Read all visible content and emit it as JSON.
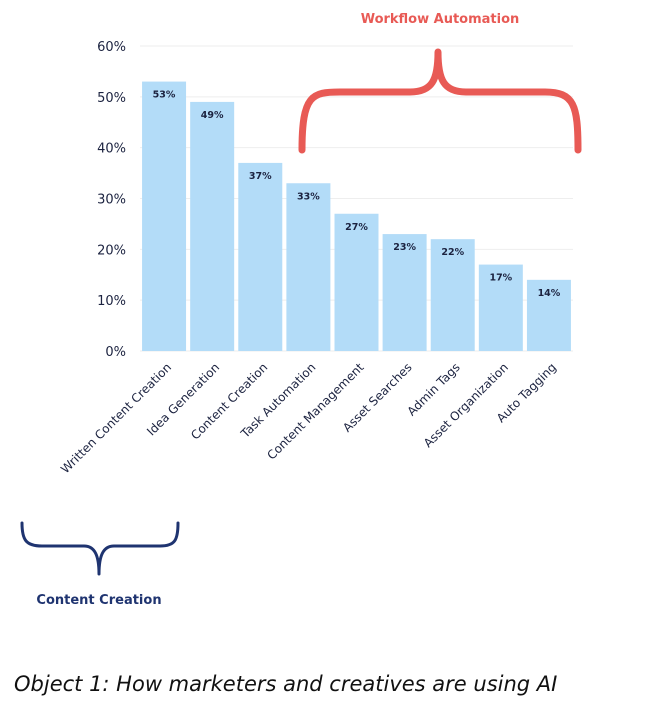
{
  "chart_data": {
    "type": "bar",
    "categories": [
      "Written Content Creation",
      "Idea Generation",
      "Content Creation",
      "Task Automation",
      "Content Management",
      "Asset Searches",
      "Admin Tags",
      "Asset Organization",
      "Auto Tagging"
    ],
    "values": [
      53,
      49,
      37,
      33,
      27,
      23,
      22,
      17,
      14
    ],
    "value_labels": [
      "53%",
      "49%",
      "37%",
      "33%",
      "27%",
      "23%",
      "22%",
      "17%",
      "14%"
    ],
    "ylim": [
      0,
      60
    ],
    "yticks": [
      0,
      10,
      20,
      30,
      40,
      50,
      60
    ],
    "ytick_labels": [
      "0%",
      "10%",
      "20%",
      "30%",
      "40%",
      "50%",
      "60%"
    ],
    "grid": true,
    "bar_color": "#b3dcf8",
    "annotations": [
      {
        "text": "Workflow Automation",
        "color": "#e85a55",
        "spans_categories": [
          3,
          8
        ],
        "position": "top"
      },
      {
        "text": "Content Creation",
        "color": "#1f3470",
        "spans_categories": [
          0,
          0
        ],
        "position": "bottom"
      }
    ]
  },
  "caption": "Object 1: How marketers and creatives are using AI"
}
